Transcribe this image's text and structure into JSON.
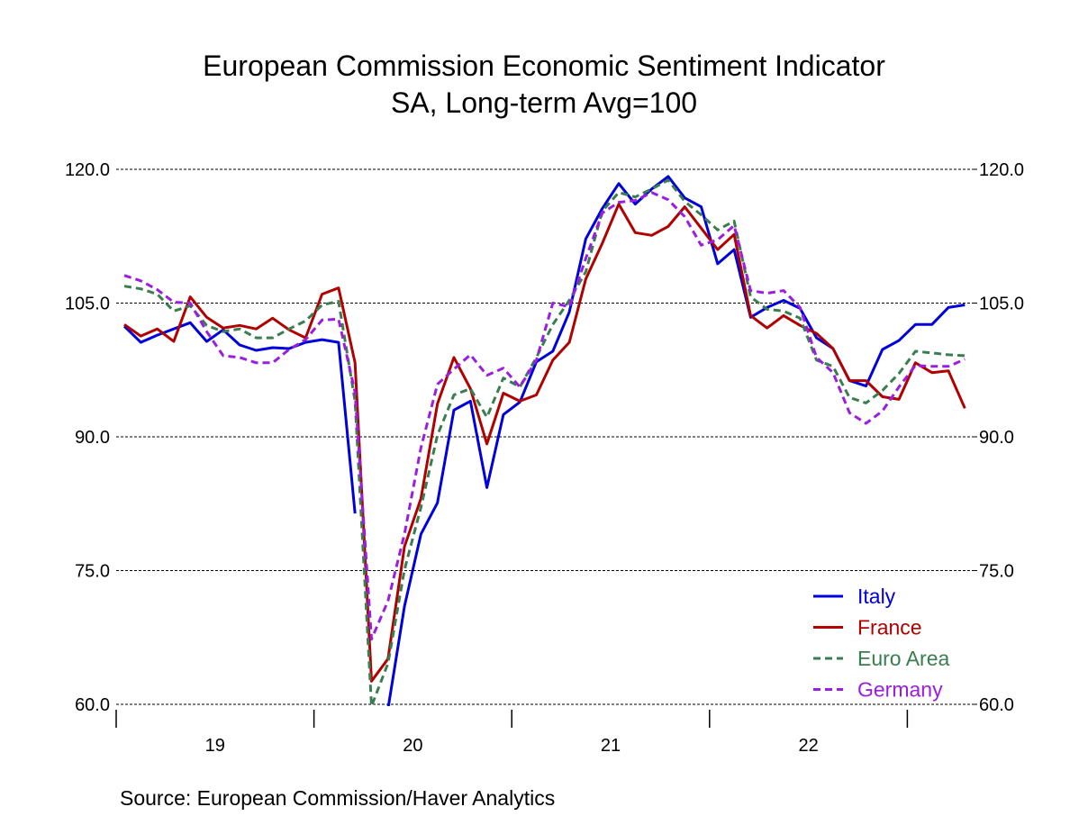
{
  "chart_data": {
    "type": "line",
    "title": "European Commission Economic Sentiment Indicator",
    "subtitle": "SA, Long-term Avg=100",
    "source": "Source:  European Commission/Haver Analytics",
    "ylim": [
      60,
      120
    ],
    "yticks": [
      "60.0",
      "75.0",
      "90.0",
      "105.0",
      "120.0"
    ],
    "ytick_values": [
      60,
      75,
      90,
      105,
      120
    ],
    "xticks": [
      "19",
      "20",
      "21",
      "22"
    ],
    "x_start": "2019-01",
    "x_end": "2023-04",
    "frequency": "monthly",
    "grid": true,
    "legend_placement": "bottom-right",
    "series": [
      {
        "name": "Italy",
        "color": "#0000dd",
        "dash": false,
        "values": [
          102.4,
          100.6,
          101.4,
          102.1,
          102.8,
          100.7,
          102.0,
          100.3,
          99.7,
          100.0,
          99.9,
          100.6,
          100.9,
          100.6,
          81.4,
          null,
          59.5,
          71.0,
          79.1,
          82.6,
          93.0,
          94.0,
          84.3,
          92.5,
          93.9,
          98.4,
          99.6,
          104.0,
          112.2,
          115.6,
          118.4,
          116.1,
          117.8,
          119.2,
          116.8,
          115.8,
          109.4,
          111.0,
          103.4,
          104.5,
          105.3,
          104.4,
          101.1,
          99.9,
          96.3,
          95.7,
          99.8,
          100.8,
          102.6,
          102.6,
          104.5,
          104.8
        ]
      },
      {
        "name": "France",
        "color": "#b00000",
        "dash": false,
        "values": [
          102.6,
          101.3,
          102.1,
          100.7,
          105.7,
          103.4,
          102.2,
          102.5,
          102.1,
          103.3,
          102.0,
          101.1,
          106.0,
          106.7,
          98.3,
          62.6,
          65.1,
          77.7,
          83.1,
          93.7,
          98.9,
          95.4,
          89.2,
          94.9,
          94.0,
          94.7,
          98.6,
          100.6,
          107.7,
          111.7,
          116.1,
          112.9,
          112.6,
          113.6,
          115.8,
          113.4,
          111.0,
          112.7,
          103.6,
          102.2,
          103.6,
          102.5,
          101.6,
          99.9,
          96.3,
          96.3,
          94.5,
          94.2,
          98.3,
          97.2,
          97.4,
          93.2
        ]
      },
      {
        "name": "Euro Area",
        "color": "#3a7d50",
        "dash": true,
        "values": [
          106.9,
          106.6,
          106.0,
          104.1,
          104.7,
          102.5,
          101.8,
          102.1,
          101.1,
          101.1,
          102.1,
          103.0,
          104.8,
          105.2,
          94.0,
          59.8,
          64.6,
          75.1,
          82.1,
          90.2,
          94.7,
          95.4,
          92.2,
          96.6,
          95.6,
          98.9,
          102.6,
          105.3,
          108.5,
          115.3,
          117.4,
          116.9,
          117.8,
          118.8,
          116.4,
          114.9,
          113.2,
          114.2,
          105.7,
          104.3,
          104.1,
          103.3,
          98.6,
          97.9,
          94.4,
          93.8,
          95.2,
          97.1,
          99.6,
          99.4,
          99.2,
          99.1
        ]
      },
      {
        "name": "Germany",
        "color": "#9a1ee0",
        "dash": true,
        "values": [
          108.1,
          107.5,
          106.5,
          105.1,
          105.0,
          101.8,
          99.1,
          98.9,
          98.3,
          98.3,
          99.8,
          100.9,
          103.1,
          103.2,
          95.0,
          67.3,
          71.6,
          79.1,
          88.8,
          95.9,
          97.6,
          99.2,
          96.9,
          97.7,
          95.6,
          98.6,
          105.0,
          104.6,
          110.0,
          115.1,
          116.3,
          116.5,
          117.4,
          116.6,
          114.7,
          111.5,
          112.1,
          113.7,
          106.4,
          106.1,
          106.4,
          104.5,
          98.9,
          97.2,
          92.7,
          91.5,
          92.9,
          95.6,
          98.0,
          97.9,
          97.9,
          98.7
        ]
      }
    ]
  }
}
